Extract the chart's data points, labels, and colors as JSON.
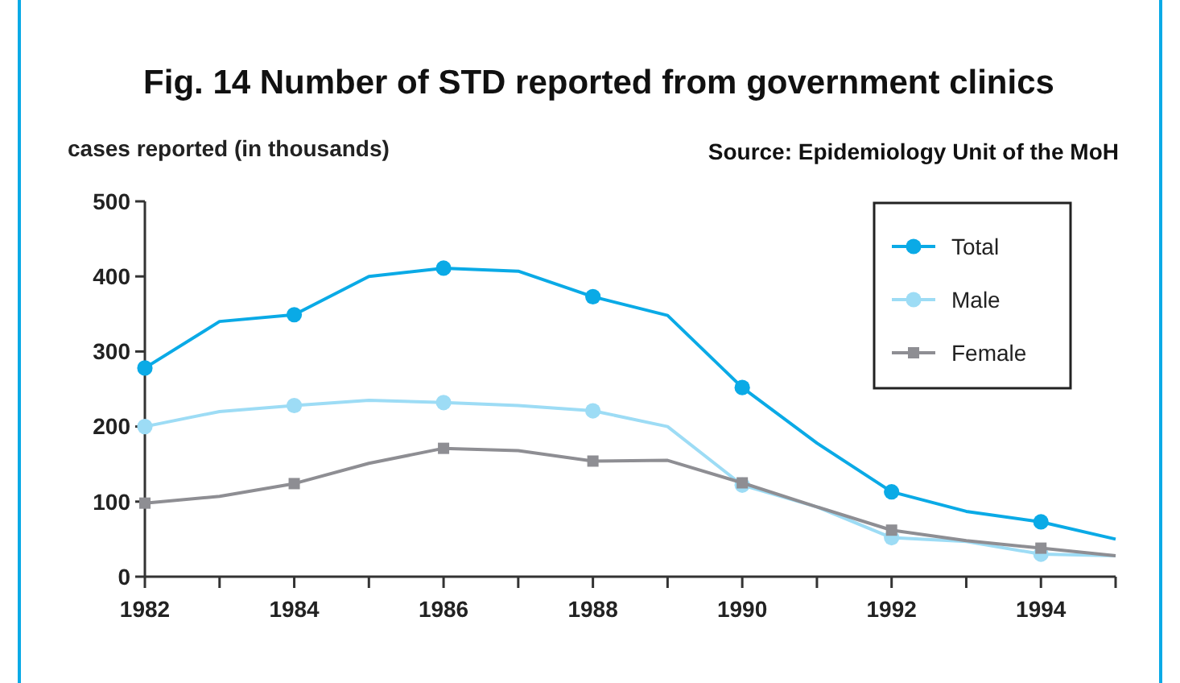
{
  "chart_data": {
    "type": "line",
    "title": "Fig. 14  Number of STD reported from government clinics",
    "ylabel": "cases reported (in thousands)",
    "annotations": [
      "Source: Epidemiology  Unit of the MoH"
    ],
    "x": [
      1982,
      1983,
      1984,
      1985,
      1986,
      1987,
      1988,
      1989,
      1990,
      1991,
      1992,
      1993,
      1994,
      1995
    ],
    "series": [
      {
        "name": "Total",
        "color": "#0aaae6",
        "marker": "circle",
        "values": [
          278,
          340,
          349,
          400,
          411,
          407,
          373,
          348,
          252,
          178,
          113,
          87,
          73,
          50
        ]
      },
      {
        "name": "Male",
        "color": "#9ddcf5",
        "marker": "circle",
        "values": [
          200,
          220,
          228,
          235,
          232,
          228,
          221,
          200,
          122,
          93,
          52,
          47,
          30,
          28
        ]
      },
      {
        "name": "Female",
        "color": "#8e8e93",
        "marker": "square",
        "values": [
          98,
          107,
          124,
          151,
          171,
          168,
          154,
          155,
          125,
          93,
          62,
          48,
          38,
          28
        ]
      }
    ],
    "xlim": [
      1982,
      1995
    ],
    "xticks": [
      1982,
      {
        "value": 1983,
        "label": null
      },
      1984,
      {
        "value": 1985,
        "label": null
      },
      1986,
      {
        "value": 1987,
        "label": null
      },
      1988,
      {
        "value": 1989,
        "label": null
      },
      1990,
      {
        "value": 1991,
        "label": null
      },
      1992,
      {
        "value": 1993,
        "label": null
      },
      1994,
      {
        "value": 1995,
        "label": null
      }
    ],
    "ylim": [
      0,
      500
    ],
    "yticks": [
      0,
      100,
      200,
      300,
      400,
      500
    ],
    "grid": false,
    "legend": "top right"
  }
}
